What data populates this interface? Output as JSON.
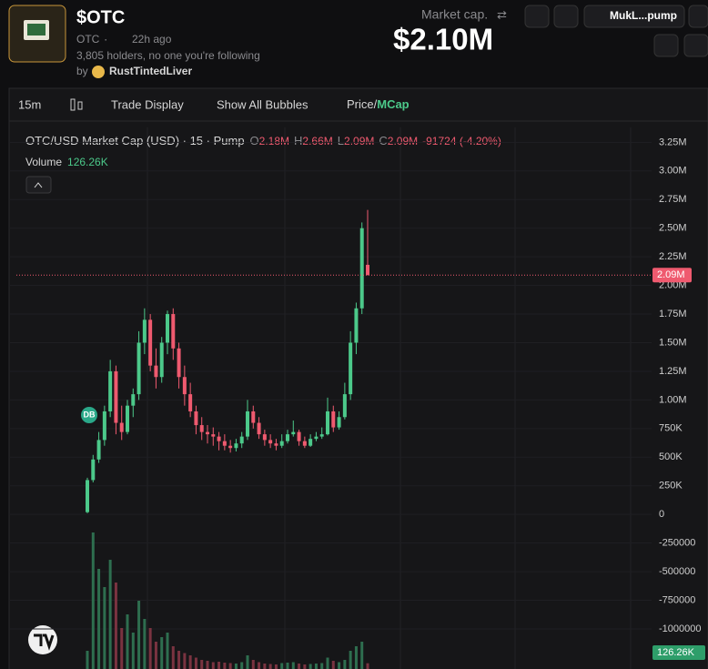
{
  "header": {
    "title": "$OTC",
    "symbol": "OTC",
    "age": "22h ago",
    "holders": "3,805 holders, no one you're following",
    "by": "by",
    "creator": "RustTintedLiver",
    "market_cap_label": "Market cap.",
    "market_cap": "$2.10M",
    "contract": "MukL...pump"
  },
  "toolbar": {
    "interval": "15m",
    "trade_display": "Trade Display",
    "bubbles": "Show All Bubbles",
    "price": "Price/",
    "mcap": "MCap"
  },
  "chart": {
    "type": "candlestick",
    "legend": {
      "title": "OTC/USD Market Cap (USD) · 15 · Pump",
      "o_label": "O",
      "o": "2.18M",
      "h_label": "H",
      "h": "2.66M",
      "l_label": "L",
      "l": "2.09M",
      "c_label": "C",
      "c": "2.09M",
      "change": "-91724 (-4.20%)",
      "volume_label": "Volume",
      "volume": "126.26K"
    },
    "marker": "DB",
    "ylim": [
      -1350000,
      3380000
    ],
    "yticks": [
      {
        "value": 3250000,
        "label": "3.25M"
      },
      {
        "value": 3000000,
        "label": "3.00M"
      },
      {
        "value": 2750000,
        "label": "2.75M"
      },
      {
        "value": 2500000,
        "label": "2.50M"
      },
      {
        "value": 2250000,
        "label": "2.25M"
      },
      {
        "value": 2000000,
        "label": "2.00M"
      },
      {
        "value": 1750000,
        "label": "1.75M"
      },
      {
        "value": 1500000,
        "label": "1.50M"
      },
      {
        "value": 1250000,
        "label": "1.25M"
      },
      {
        "value": 1000000,
        "label": "1.00M"
      },
      {
        "value": 750000,
        "label": "750K"
      },
      {
        "value": 500000,
        "label": "500K"
      },
      {
        "value": 250000,
        "label": "250K"
      },
      0,
      -250000,
      -500000,
      -750000,
      -1000000
    ],
    "last_price": {
      "value": 2090000,
      "label": "2.09M"
    },
    "last_volume": {
      "value": 126260,
      "label": "126.26K"
    },
    "up_color": "#4cc98a",
    "down_color": "#ef5a6f",
    "candles": [
      [
        20000,
        320000,
        10000,
        300000
      ],
      [
        300000,
        520000,
        280000,
        480000
      ],
      [
        480000,
        720000,
        450000,
        650000
      ],
      [
        650000,
        950000,
        600000,
        900000
      ],
      [
        900000,
        1350000,
        850000,
        1250000
      ],
      [
        1250000,
        1300000,
        700000,
        800000
      ],
      [
        800000,
        950000,
        650000,
        720000
      ],
      [
        720000,
        1000000,
        700000,
        950000
      ],
      [
        950000,
        1100000,
        850000,
        1050000
      ],
      [
        1050000,
        1600000,
        1000000,
        1500000
      ],
      [
        1500000,
        1800000,
        1400000,
        1700000
      ],
      [
        1700000,
        1750000,
        1250000,
        1300000
      ],
      [
        1300000,
        1450000,
        1100000,
        1200000
      ],
      [
        1200000,
        1550000,
        1150000,
        1500000
      ],
      [
        1500000,
        1780000,
        1400000,
        1750000
      ],
      [
        1750000,
        1800000,
        1350000,
        1450000
      ],
      [
        1450000,
        1500000,
        1100000,
        1200000
      ],
      [
        1200000,
        1300000,
        950000,
        1050000
      ],
      [
        1050000,
        1150000,
        850000,
        900000
      ],
      [
        900000,
        950000,
        700000,
        780000
      ],
      [
        780000,
        850000,
        650000,
        720000
      ],
      [
        720000,
        780000,
        620000,
        700000
      ],
      [
        700000,
        760000,
        600000,
        680000
      ],
      [
        680000,
        720000,
        560000,
        640000
      ],
      [
        640000,
        700000,
        560000,
        600000
      ],
      [
        600000,
        650000,
        540000,
        580000
      ],
      [
        580000,
        660000,
        550000,
        620000
      ],
      [
        620000,
        720000,
        580000,
        680000
      ],
      [
        680000,
        1000000,
        650000,
        900000
      ],
      [
        900000,
        950000,
        750000,
        800000
      ],
      [
        800000,
        850000,
        660000,
        700000
      ],
      [
        700000,
        740000,
        600000,
        650000
      ],
      [
        650000,
        700000,
        580000,
        620000
      ],
      [
        620000,
        660000,
        560000,
        600000
      ],
      [
        600000,
        700000,
        580000,
        640000
      ],
      [
        640000,
        740000,
        620000,
        700000
      ],
      [
        700000,
        820000,
        680000,
        720000
      ],
      [
        720000,
        740000,
        600000,
        640000
      ],
      [
        640000,
        680000,
        580000,
        600000
      ],
      [
        600000,
        700000,
        590000,
        660000
      ],
      [
        660000,
        720000,
        640000,
        680000
      ],
      [
        680000,
        760000,
        660000,
        700000
      ],
      [
        700000,
        1020000,
        690000,
        900000
      ],
      [
        900000,
        950000,
        720000,
        760000
      ],
      [
        760000,
        900000,
        740000,
        850000
      ],
      [
        850000,
        1150000,
        830000,
        1050000
      ],
      [
        1050000,
        1600000,
        1000000,
        1500000
      ],
      [
        1500000,
        1850000,
        1400000,
        1800000
      ],
      [
        1800000,
        2550000,
        1750000,
        2500000
      ],
      [
        2180000,
        2660000,
        2090000,
        2090000
      ]
    ],
    "volumes": [
      400000,
      3000000,
      2200000,
      1800000,
      2400000,
      1900000,
      900000,
      1200000,
      800000,
      1500000,
      1100000,
      900000,
      600000,
      700000,
      800000,
      500000,
      400000,
      350000,
      300000,
      250000,
      200000,
      180000,
      150000,
      160000,
      140000,
      130000,
      120000,
      150000,
      300000,
      200000,
      150000,
      120000,
      110000,
      100000,
      130000,
      140000,
      150000,
      120000,
      100000,
      110000,
      120000,
      130000,
      250000,
      180000,
      150000,
      200000,
      400000,
      500000,
      600000,
      126260
    ]
  }
}
